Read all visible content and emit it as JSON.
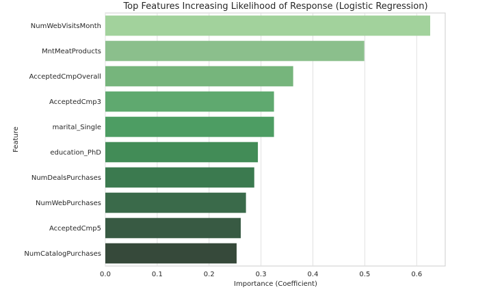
{
  "chart_data": {
    "type": "bar",
    "orientation": "horizontal",
    "title": "Top Features Increasing Likelihood of Response (Logistic Regression)",
    "xlabel": "Importance (Coefficient)",
    "ylabel": "Feature",
    "categories": [
      "NumWebVisitsMonth",
      "MntMeatProducts",
      "AcceptedCmpOverall",
      "AcceptedCmp3",
      "marital_Single",
      "education_PhD",
      "NumDealsPurchases",
      "NumWebPurchases",
      "AcceptedCmp5",
      "NumCatalogPurchases"
    ],
    "values": [
      0.626,
      0.499,
      0.362,
      0.325,
      0.325,
      0.294,
      0.287,
      0.271,
      0.261,
      0.253
    ],
    "xlim": [
      0,
      0.655
    ],
    "xticks": [
      "0.0",
      "0.1",
      "0.2",
      "0.3",
      "0.4",
      "0.5",
      "0.6"
    ],
    "grid": "vertical",
    "colors": [
      "#a2d29c",
      "#8bbf8c",
      "#76b57c",
      "#5fa96f",
      "#4d9d63",
      "#428c57",
      "#3b7a4f",
      "#3a6a4a",
      "#385a43",
      "#36493a"
    ]
  }
}
